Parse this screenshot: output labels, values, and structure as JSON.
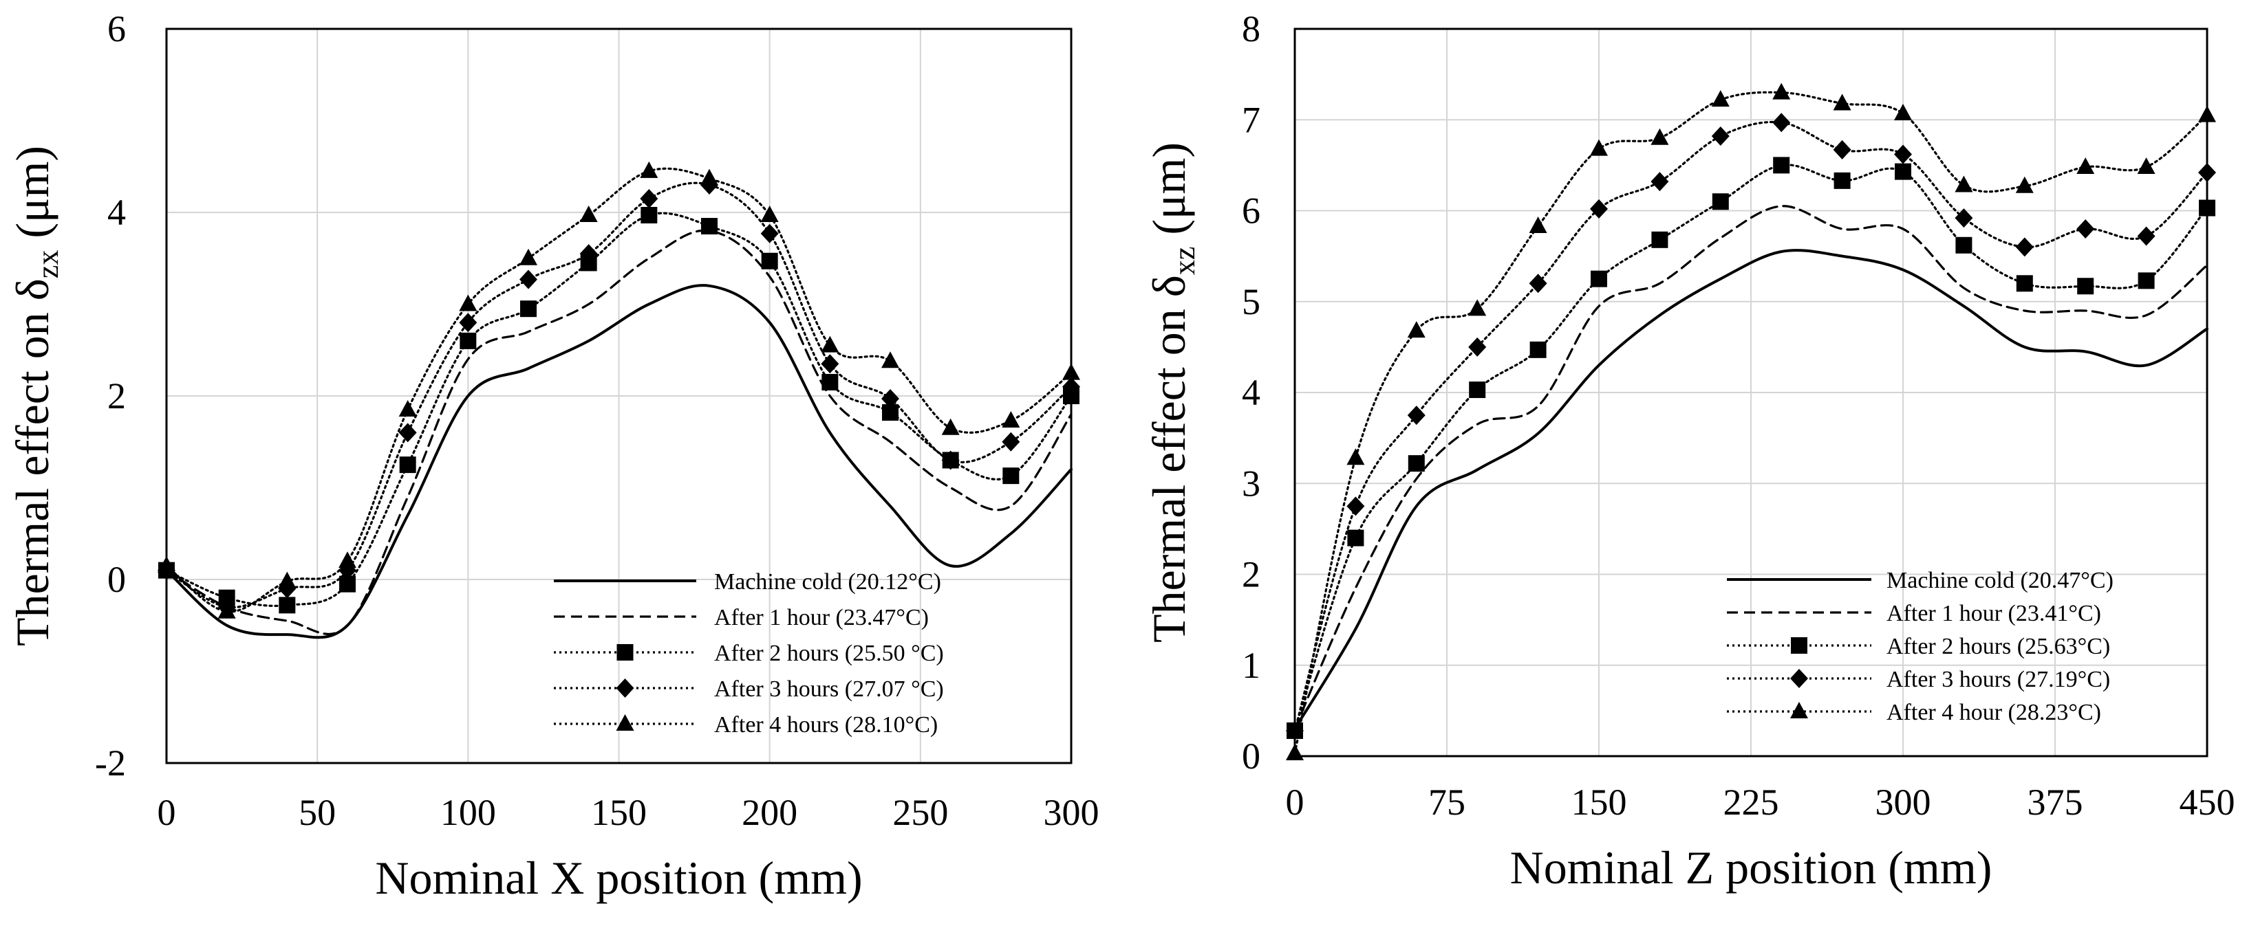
{
  "chart_data": [
    {
      "type": "line",
      "title": "",
      "xlabel": "Nominal X position (mm)",
      "ylabel": {
        "prefix": "Thermal effect on δ",
        "subscript": "zx",
        "suffix": " (μm)"
      },
      "xlim": [
        0,
        300
      ],
      "ylim": [
        -2,
        6
      ],
      "xticks": [
        0,
        50,
        100,
        150,
        200,
        250,
        300
      ],
      "xtick_labels": [
        "0",
        "50",
        "100",
        "150",
        "200",
        "250",
        "300"
      ],
      "yticks": [
        -2,
        0,
        2,
        4,
        6
      ],
      "ytick_labels": [
        "-2",
        "0",
        "2",
        "4",
        "6"
      ],
      "grid": true,
      "legend_position": "bottom-right",
      "x": [
        0,
        20,
        40,
        60,
        80,
        100,
        120,
        140,
        160,
        180,
        200,
        220,
        240,
        260,
        280,
        300
      ],
      "series": [
        {
          "name": "Machine cold (20.12°C)",
          "line": "solid",
          "marker": "none",
          "values": [
            0.1,
            -0.5,
            -0.6,
            -0.5,
            0.7,
            2.0,
            2.3,
            2.6,
            3.0,
            3.2,
            2.8,
            1.6,
            0.8,
            0.15,
            0.5,
            1.2
          ]
        },
        {
          "name": "After 1 hour (23.47°C)",
          "line": "dashed",
          "marker": "none",
          "values": [
            0.1,
            -0.3,
            -0.45,
            -0.5,
            0.9,
            2.4,
            2.7,
            3.0,
            3.5,
            3.8,
            3.3,
            2.0,
            1.5,
            1.0,
            0.8,
            1.8
          ]
        },
        {
          "name": "After 2 hours (25.50 °C)",
          "line": "dotted",
          "marker": "square",
          "values": [
            0.1,
            -0.2,
            -0.28,
            -0.05,
            1.25,
            2.6,
            2.95,
            3.45,
            3.97,
            3.85,
            3.47,
            2.15,
            1.82,
            1.3,
            1.13,
            2.0
          ]
        },
        {
          "name": "After 3 hours (27.07 °C)",
          "line": "dotted",
          "marker": "diamond",
          "values": [
            0.1,
            -0.3,
            -0.1,
            0.1,
            1.6,
            2.8,
            3.27,
            3.55,
            4.15,
            4.3,
            3.77,
            2.35,
            1.97,
            1.3,
            1.5,
            2.1
          ]
        },
        {
          "name": "After 4 hours (28.10°C)",
          "line": "dotted",
          "marker": "triangle",
          "values": [
            0.15,
            -0.35,
            -0.02,
            0.2,
            1.85,
            3.0,
            3.5,
            3.97,
            4.45,
            4.37,
            3.97,
            2.55,
            2.38,
            1.65,
            1.73,
            2.25
          ]
        }
      ]
    },
    {
      "type": "line",
      "title": "",
      "xlabel": "Nominal Z position (mm)",
      "ylabel": {
        "prefix": "Thermal effect on δ",
        "subscript": "xz",
        "suffix": " (μm)"
      },
      "xlim": [
        0,
        450
      ],
      "ylim": [
        0,
        8
      ],
      "xticks": [
        0,
        75,
        150,
        225,
        300,
        375,
        450
      ],
      "xtick_labels": [
        "0",
        "75",
        "150",
        "225",
        "300",
        "375",
        "450"
      ],
      "yticks": [
        0,
        1,
        2,
        3,
        4,
        5,
        6,
        7,
        8
      ],
      "ytick_labels": [
        "0",
        "1",
        "2",
        "3",
        "4",
        "5",
        "6",
        "7",
        "8"
      ],
      "grid": true,
      "legend_position": "bottom-right",
      "x": [
        0,
        30,
        60,
        90,
        120,
        150,
        180,
        210,
        240,
        270,
        300,
        330,
        360,
        390,
        420,
        450
      ],
      "series": [
        {
          "name": "Machine cold (20.47°C)",
          "line": "solid",
          "marker": "none",
          "values": [
            0.3,
            1.4,
            2.75,
            3.15,
            3.55,
            4.3,
            4.85,
            5.25,
            5.55,
            5.5,
            5.35,
            4.95,
            4.5,
            4.45,
            4.3,
            4.7
          ]
        },
        {
          "name": "After 1 hour (23.41°C)",
          "line": "dashed",
          "marker": "none",
          "values": [
            0.3,
            1.85,
            3.05,
            3.65,
            3.85,
            4.95,
            5.2,
            5.7,
            6.05,
            5.8,
            5.8,
            5.15,
            4.9,
            4.9,
            4.85,
            5.4
          ]
        },
        {
          "name": "After 2 hours (25.63°C)",
          "line": "dotted",
          "marker": "square",
          "values": [
            0.28,
            2.4,
            3.22,
            4.03,
            4.47,
            5.25,
            5.68,
            6.1,
            6.5,
            6.33,
            6.43,
            5.62,
            5.2,
            5.17,
            5.23,
            6.03
          ]
        },
        {
          "name": "After 3 hours (27.19°C)",
          "line": "dotted",
          "marker": "diamond",
          "values": [
            0.28,
            2.75,
            3.75,
            4.5,
            5.2,
            6.02,
            6.32,
            6.82,
            6.97,
            6.67,
            6.62,
            5.92,
            5.6,
            5.8,
            5.72,
            6.42
          ]
        },
        {
          "name": "After 4 hour (28.23°C)",
          "line": "dotted",
          "marker": "triangle",
          "values": [
            0.03,
            3.28,
            4.68,
            4.92,
            5.83,
            6.68,
            6.8,
            7.22,
            7.3,
            7.18,
            7.07,
            6.28,
            6.27,
            6.48,
            6.48,
            7.05
          ]
        }
      ]
    }
  ]
}
